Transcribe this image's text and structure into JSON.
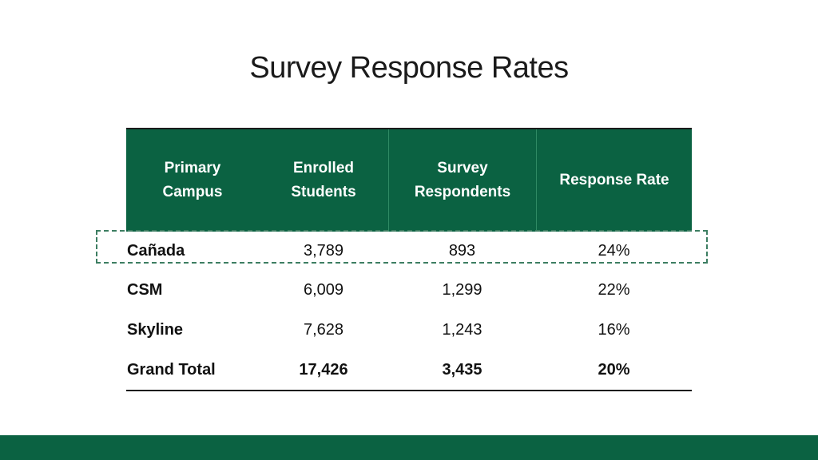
{
  "title": "Survey Response Rates",
  "table": {
    "headers": [
      "Primary\nCampus",
      "Enrolled\nStudents",
      "Survey\nRespondents",
      "Response Rate"
    ],
    "rows": [
      {
        "campus": "Cañada",
        "enrolled": "3,789",
        "respondents": "893",
        "rate": "24%"
      },
      {
        "campus": "CSM",
        "enrolled": "6,009",
        "respondents": "1,299",
        "rate": "22%"
      },
      {
        "campus": "Skyline",
        "enrolled": "7,628",
        "respondents": "1,243",
        "rate": "16%"
      }
    ],
    "total": {
      "campus": "Grand Total",
      "enrolled": "17,426",
      "respondents": "3,435",
      "rate": "20%"
    }
  },
  "colors": {
    "header_background": "#0b6242",
    "footer_bar": "#0b6242",
    "highlight_border": "#3d7e62"
  }
}
